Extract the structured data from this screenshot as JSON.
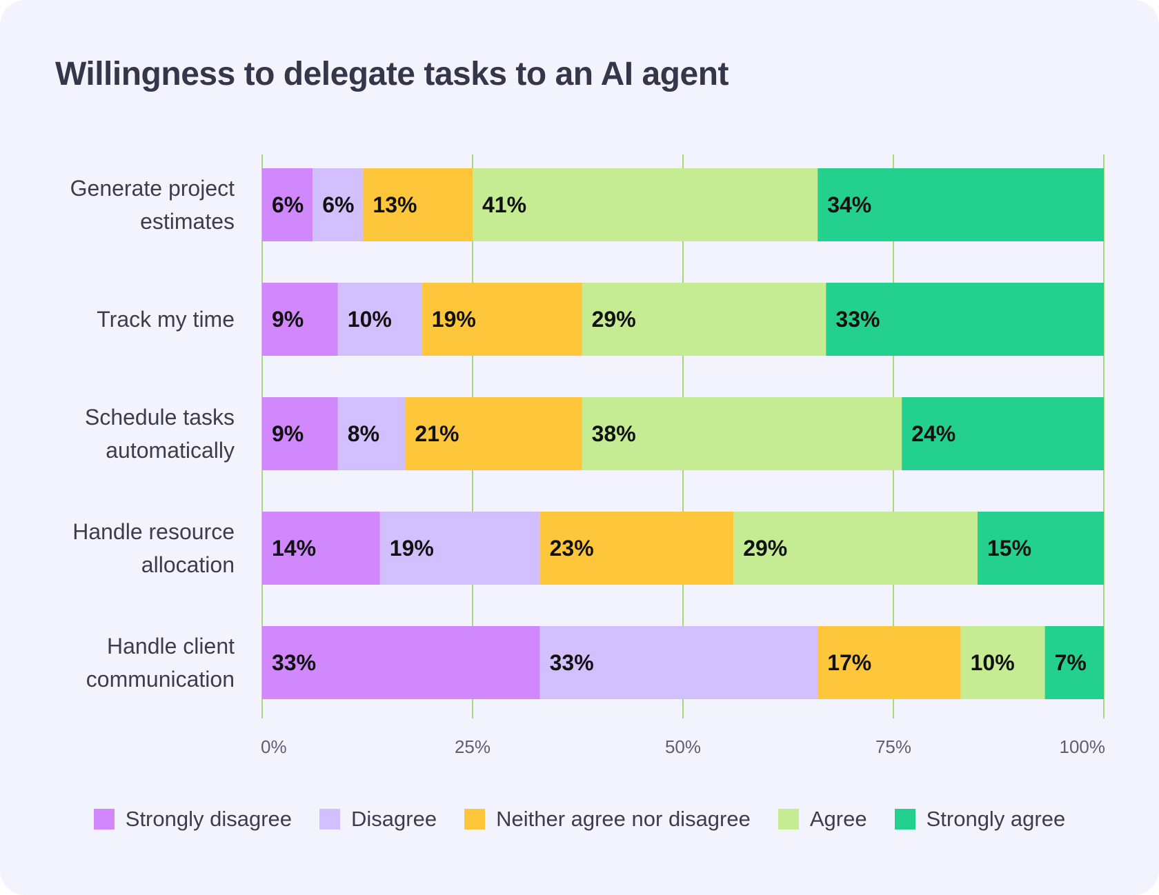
{
  "title": "Willingness to delegate tasks to an AI agent",
  "colors": {
    "strongly_disagree": "#d088fc",
    "disagree": "#d2bffd",
    "neither": "#fec63b",
    "agree": "#c5eb93",
    "strongly_agree": "#24d08e",
    "gridline": "#a8d87a",
    "background": "#f2f3fc"
  },
  "chart_data": {
    "type": "bar",
    "orientation": "horizontal",
    "stacked": true,
    "title": "Willingness to delegate tasks to an AI agent",
    "xlabel": "",
    "ylabel": "",
    "xlim": [
      0,
      100
    ],
    "xticks": [
      "0%",
      "25%",
      "50%",
      "75%",
      "100%"
    ],
    "grid": true,
    "legend_position": "bottom",
    "categories": [
      [
        "Generate project",
        "estimates"
      ],
      [
        "Track my time"
      ],
      [
        "Schedule tasks",
        "automatically"
      ],
      [
        "Handle resource",
        "allocation"
      ],
      [
        "Handle client",
        "communication"
      ]
    ],
    "series": [
      {
        "name": "Strongly disagree",
        "color": "#d088fc",
        "values": [
          6,
          9,
          9,
          14,
          33
        ]
      },
      {
        "name": "Disagree",
        "color": "#d2bffd",
        "values": [
          6,
          10,
          8,
          19,
          33
        ]
      },
      {
        "name": "Neither agree nor disagree",
        "color": "#fec63b",
        "values": [
          13,
          19,
          21,
          23,
          17
        ]
      },
      {
        "name": "Agree",
        "color": "#c5eb93",
        "values": [
          41,
          29,
          38,
          29,
          10
        ]
      },
      {
        "name": "Strongly agree",
        "color": "#24d08e",
        "values": [
          34,
          33,
          24,
          15,
          7
        ]
      }
    ],
    "value_labels": [
      [
        "6%",
        "9%",
        "9%",
        "14%",
        "33%"
      ],
      [
        "6%",
        "10%",
        "8%",
        "19%",
        "33%"
      ],
      [
        "13%",
        "19%",
        "21%",
        "23%",
        "17%"
      ],
      [
        "41%",
        "29%",
        "38%",
        "29%",
        "10%"
      ],
      [
        "34%",
        "33%",
        "24%",
        "15%",
        "7%"
      ]
    ]
  }
}
